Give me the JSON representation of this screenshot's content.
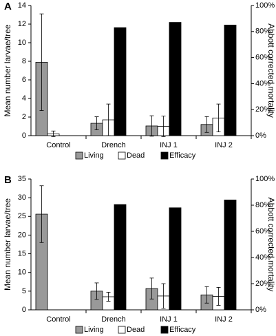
{
  "chart_data": [
    {
      "type": "bar",
      "panel_label": "A",
      "y_label": "Mean number larvae/tree",
      "y2_label": "Abbott corrected mortality",
      "categories": [
        "Control",
        "Drench",
        "INJ 1",
        "INJ 2"
      ],
      "series": [
        {
          "name": "Living",
          "color": "#999999",
          "values": [
            7.9,
            1.33,
            1.04,
            1.2
          ],
          "errors": [
            5.2,
            0.7,
            1.1,
            0.85
          ]
        },
        {
          "name": "Dead",
          "color": "#ffffff",
          "values": [
            0.2,
            1.7,
            1.0,
            1.9
          ],
          "errors": [
            0.3,
            1.7,
            1.1,
            1.5
          ]
        },
        {
          "name": "Efficacy",
          "color": "#000000",
          "axis": "y2",
          "values": [
            null,
            83,
            87,
            85
          ],
          "errors": [
            null,
            null,
            null,
            null
          ]
        }
      ],
      "ylim": [
        0,
        14
      ],
      "yticks": [
        0,
        2,
        4,
        6,
        8,
        10,
        12,
        14
      ],
      "y2lim": [
        0,
        100
      ],
      "y2ticks": [
        {
          "value": 0,
          "label": "0%"
        },
        {
          "value": 20,
          "label": "20%"
        },
        {
          "value": 40,
          "label": "40%"
        },
        {
          "value": 60,
          "label": "60%"
        },
        {
          "value": 80,
          "label": "80%"
        },
        {
          "value": 100,
          "label": "100%"
        }
      ]
    },
    {
      "type": "bar",
      "panel_label": "B",
      "y_label": "Mean number larvae/tree",
      "y2_label": "Abbott corrected mortality",
      "categories": [
        "Control",
        "Drench",
        "INJ 1",
        "INJ 2"
      ],
      "series": [
        {
          "name": "Living",
          "color": "#999999",
          "values": [
            25.6,
            5.0,
            5.7,
            4.0
          ],
          "errors": [
            7.6,
            2.2,
            2.8,
            2.2
          ]
        },
        {
          "name": "Dead",
          "color": "#ffffff",
          "values": [
            null,
            3.5,
            3.7,
            3.6
          ],
          "errors": [
            null,
            1.2,
            3.3,
            2.4
          ]
        },
        {
          "name": "Efficacy",
          "color": "#000000",
          "axis": "y2",
          "values": [
            null,
            80.5,
            78,
            84
          ],
          "errors": [
            null,
            null,
            null,
            null
          ]
        }
      ],
      "ylim": [
        0,
        35
      ],
      "yticks": [
        0,
        5,
        10,
        15,
        20,
        25,
        30,
        35
      ],
      "y2lim": [
        0,
        100
      ],
      "y2ticks": [
        {
          "value": 0,
          "label": "0%"
        },
        {
          "value": 20,
          "label": "20%"
        },
        {
          "value": 40,
          "label": "40%"
        },
        {
          "value": 60,
          "label": "60%"
        },
        {
          "value": 80,
          "label": "80%"
        },
        {
          "value": 100,
          "label": "100%"
        }
      ]
    }
  ]
}
